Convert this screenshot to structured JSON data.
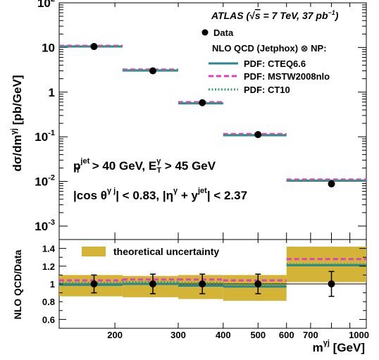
{
  "chart_data": [
    {
      "type": "scatter",
      "role": "main",
      "x_scale": "log",
      "y_scale": "log",
      "xlim": [
        140,
        1000
      ],
      "ylim": [
        0.0005,
        100
      ],
      "ylabel": "dσ/dm",
      "ylabel_sup": "γj",
      "ylabel_unit": " [pb/GeV]",
      "y_ticks": [
        {
          "value": 100,
          "base": "10",
          "exp": "2"
        },
        {
          "value": 10,
          "base": "10",
          "exp": ""
        },
        {
          "value": 1,
          "base": "1",
          "exp": ""
        },
        {
          "value": 0.1,
          "base": "10",
          "exp": "-1"
        },
        {
          "value": 0.01,
          "base": "10",
          "exp": "-2"
        },
        {
          "value": 0.001,
          "base": "10",
          "exp": "-3"
        }
      ],
      "bins": [
        {
          "low": 140,
          "high": 210
        },
        {
          "low": 210,
          "high": 300
        },
        {
          "low": 300,
          "high": 400
        },
        {
          "low": 400,
          "high": 600
        },
        {
          "low": 600,
          "high": 1000
        }
      ],
      "series": [
        {
          "name": "Data",
          "style": "marker",
          "color": "#000000",
          "x": [
            175,
            255,
            350,
            500,
            800
          ],
          "y": [
            10.5,
            3.0,
            0.58,
            0.112,
            0.0088
          ]
        },
        {
          "name": "PDF: CTEQ6.6",
          "style": "solid",
          "color": "#2a8596",
          "y": [
            10.5,
            3.05,
            0.56,
            0.108,
            0.0104
          ]
        },
        {
          "name": "PDF: MSTW2008nlo",
          "style": "dashed",
          "color": "#e040c0",
          "y": [
            10.9,
            3.2,
            0.595,
            0.115,
            0.011
          ]
        },
        {
          "name": "PDF: CT10",
          "style": "dotted",
          "color": "#2e9f6e",
          "y": [
            10.6,
            3.1,
            0.57,
            0.11,
            0.0105
          ]
        }
      ],
      "annotations": {
        "experiment": "ATLAS (",
        "sqrt_s": "s",
        "energy": " = 7 TeV, 37 pb",
        "lumi_exp": "−1",
        "close": ")",
        "theory_header": "NLO QCD (Jetphox) ⊗ NP:",
        "cut1": {
          "p": "p",
          "p_sup": "jet",
          "p_sub": "T",
          "mid": " > 40 GeV, E",
          "e_sup": "γ",
          "e_sub": "T",
          "end": " > 45 GeV"
        },
        "cut2": {
          "a": "|cos  θ",
          "a_sup": "γ j",
          "b": "| < 0.83, |η",
          "b_sup": "γ",
          "c": " + y",
          "c_sup": "jet",
          "d": "| < 2.37"
        }
      }
    },
    {
      "type": "scatter",
      "role": "ratio",
      "x_scale": "log",
      "xlim": [
        140,
        1000
      ],
      "ylim": [
        0.5,
        1.5
      ],
      "ylabel": "NLO QCD/Data",
      "xlabel": "m",
      "xlabel_sup": "γj",
      "xlabel_unit": " [GeV]",
      "y_ticks": [
        "0.6",
        "0.8",
        "1",
        "1.2",
        "1.4"
      ],
      "x_ticks": [
        "200",
        "300",
        "400",
        "500",
        "600",
        "700",
        "1000"
      ],
      "band": {
        "name": "theoretical uncertainty",
        "color": "#d4b436",
        "low": [
          0.86,
          0.85,
          0.83,
          0.81,
          1.02
        ],
        "high": [
          1.1,
          1.09,
          1.1,
          1.1,
          1.42
        ]
      },
      "data_points": {
        "x": [
          175,
          255,
          350,
          500,
          800
        ],
        "y": [
          1.0,
          1.0,
          1.0,
          1.0,
          1.0
        ],
        "err": [
          0.1,
          0.11,
          0.11,
          0.11,
          0.14
        ]
      },
      "series": [
        {
          "name": "PDF: CTEQ6.6",
          "color": "#2a8596",
          "y": [
            0.99,
            1.0,
            0.98,
            0.97,
            1.21
          ]
        },
        {
          "name": "PDF: MSTW2008nlo",
          "color": "#e040c0",
          "y": [
            1.04,
            1.05,
            1.05,
            1.04,
            1.28
          ]
        },
        {
          "name": "PDF: CT10",
          "color": "#2e9f6e",
          "y": [
            1.01,
            1.02,
            1.01,
            0.99,
            1.22
          ]
        }
      ]
    }
  ]
}
